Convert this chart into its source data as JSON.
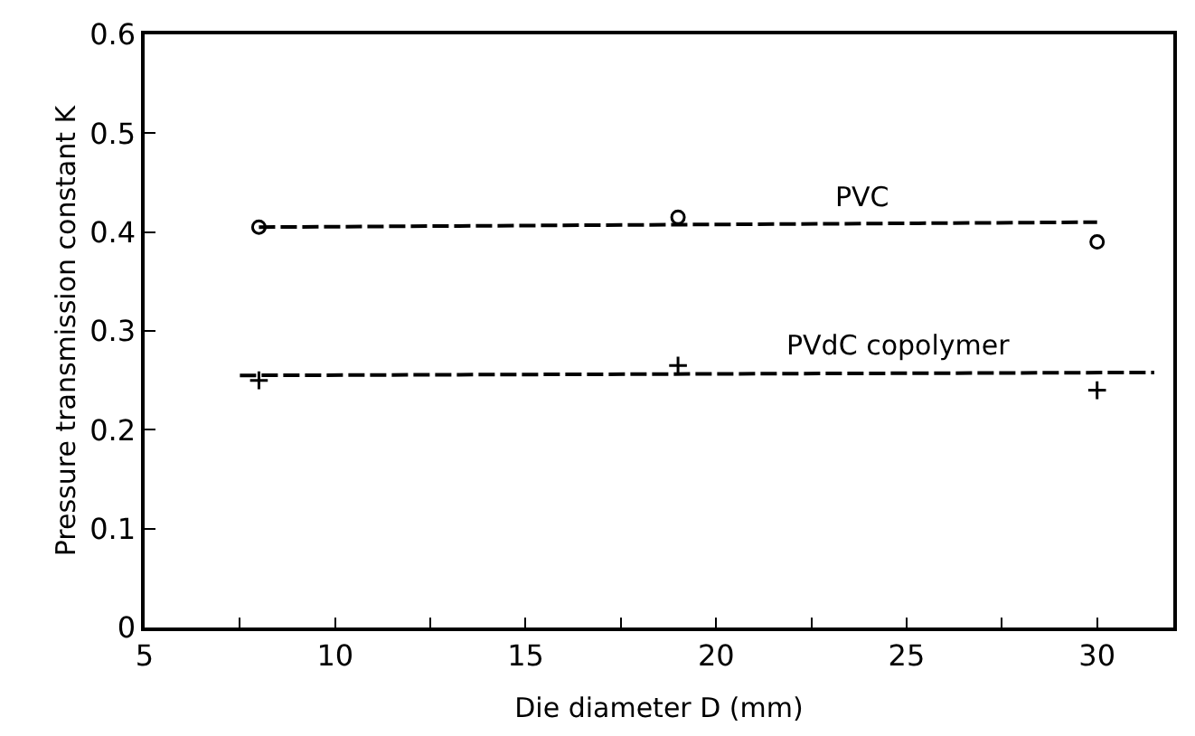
{
  "chart_data": {
    "type": "scatter",
    "xlabel": "Die diameter D (mm)",
    "ylabel": "Pressure transmission constant K",
    "xlim": [
      5,
      32
    ],
    "xticks": [
      5,
      {
        "value": 7.5,
        "label": null
      },
      10,
      {
        "value": 12.5,
        "label": null
      },
      15,
      {
        "value": 17.5,
        "label": null
      },
      20,
      {
        "value": 22.5,
        "label": null
      },
      25,
      {
        "value": 27.5,
        "label": null
      },
      30
    ],
    "ylim": [
      0,
      0.6
    ],
    "yticks": [
      0,
      0.1,
      0.2,
      0.3,
      0.4,
      0.5,
      0.6
    ],
    "legend": false,
    "series": [
      {
        "marker": "circle",
        "color": "#000000",
        "x": [
          8,
          19,
          30
        ],
        "values": [
          0.405,
          0.415,
          0.39
        ]
      },
      {
        "type": "line",
        "line_style": "dashed",
        "marker": "none",
        "name": "PVC",
        "color": "#000000",
        "x": [
          8,
          30
        ],
        "values": [
          0.405,
          0.41
        ]
      },
      {
        "marker": "cross",
        "color": "#000000",
        "x": [
          8,
          19,
          30
        ],
        "values": [
          0.25,
          0.265,
          0.24
        ]
      },
      {
        "type": "line",
        "line_style": "dashed",
        "marker": "none",
        "name": "PVdC copolymer",
        "color": "#000000",
        "x": [
          7.5,
          31.5
        ],
        "values": [
          0.255,
          0.258
        ]
      }
    ]
  }
}
